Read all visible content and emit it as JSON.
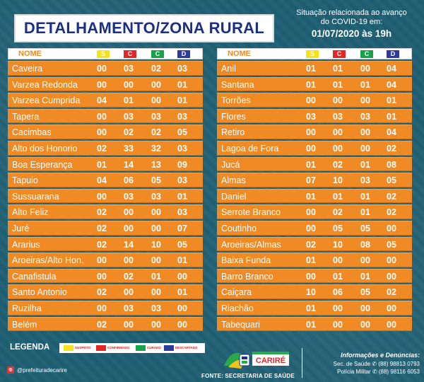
{
  "title": "DETALHAMENTO/ZONA RURAL",
  "status": {
    "line1": "Situação relacionada ao avanço",
    "line2": "do COVID-19 em:",
    "datetime": "01/07/2020 às 19h"
  },
  "header": {
    "name_label": "NOME",
    "s": "S",
    "c": "C",
    "cu": "C",
    "d": "D"
  },
  "colors": {
    "background": "#1f5f73",
    "row": "#f08a24",
    "title_text": "#1b2f87",
    "suspeito": "#f4e21a",
    "confirmado": "#e32726",
    "curado": "#17a34a",
    "descartado": "#2f3a9f"
  },
  "left_rows": [
    {
      "name": "Caveira",
      "s": "00",
      "c": "03",
      "cu": "02",
      "d": "03"
    },
    {
      "name": "Varzea Redonda",
      "s": "00",
      "c": "00",
      "cu": "00",
      "d": "01"
    },
    {
      "name": "Varzea Cumprida",
      "s": "04",
      "c": "01",
      "cu": "00",
      "d": "01"
    },
    {
      "name": "Tapera",
      "s": "00",
      "c": "03",
      "cu": "03",
      "d": "03"
    },
    {
      "name": "Cacimbas",
      "s": "00",
      "c": "02",
      "cu": "02",
      "d": "05"
    },
    {
      "name": "Alto dos Honorio",
      "s": "02",
      "c": "33",
      "cu": "32",
      "d": "03"
    },
    {
      "name": "Boa Esperança",
      "s": "01",
      "c": "14",
      "cu": "13",
      "d": "09"
    },
    {
      "name": "Tapuio",
      "s": "04",
      "c": "06",
      "cu": "05",
      "d": "03"
    },
    {
      "name": "Sussuarana",
      "s": "00",
      "c": "03",
      "cu": "03",
      "d": "01"
    },
    {
      "name": "Alto Feliz",
      "s": "02",
      "c": "00",
      "cu": "00",
      "d": "03"
    },
    {
      "name": "Juré",
      "s": "02",
      "c": "00",
      "cu": "00",
      "d": "07"
    },
    {
      "name": "Ararius",
      "s": "02",
      "c": "14",
      "cu": "10",
      "d": "05"
    },
    {
      "name": "Aroeiras/Alto Hon.",
      "s": "00",
      "c": "00",
      "cu": "00",
      "d": "01"
    },
    {
      "name": "Canafistula",
      "s": "00",
      "c": "02",
      "cu": "01",
      "d": "00"
    },
    {
      "name": "Santo Antonio",
      "s": "02",
      "c": "00",
      "cu": "00",
      "d": "01"
    },
    {
      "name": "Ruzilha",
      "s": "00",
      "c": "03",
      "cu": "03",
      "d": "00"
    },
    {
      "name": "Belém",
      "s": "02",
      "c": "00",
      "cu": "00",
      "d": "00"
    }
  ],
  "right_rows": [
    {
      "name": "Anil",
      "s": "01",
      "c": "01",
      "cu": "00",
      "d": "04"
    },
    {
      "name": "Santana",
      "s": "01",
      "c": "01",
      "cu": "01",
      "d": "04"
    },
    {
      "name": "Torrões",
      "s": "00",
      "c": "00",
      "cu": "00",
      "d": "01"
    },
    {
      "name": "Flores",
      "s": "03",
      "c": "03",
      "cu": "03",
      "d": "01"
    },
    {
      "name": "Retiro",
      "s": "00",
      "c": "00",
      "cu": "00",
      "d": "04"
    },
    {
      "name": "Lagoa de Fora",
      "s": "00",
      "c": "00",
      "cu": "00",
      "d": "02"
    },
    {
      "name": "Jucá",
      "s": "01",
      "c": "02",
      "cu": "01",
      "d": "08"
    },
    {
      "name": "Almas",
      "s": "07",
      "c": "10",
      "cu": "03",
      "d": "05"
    },
    {
      "name": "Daniel",
      "s": "01",
      "c": "01",
      "cu": "01",
      "d": "02"
    },
    {
      "name": "Serrote Branco",
      "s": "00",
      "c": "02",
      "cu": "01",
      "d": "02"
    },
    {
      "name": "Coutinho",
      "s": "00",
      "c": "05",
      "cu": "05",
      "d": "00"
    },
    {
      "name": "Aroeiras/Almas",
      "s": "02",
      "c": "10",
      "cu": "08",
      "d": "05"
    },
    {
      "name": "Baixa Funda",
      "s": "01",
      "c": "00",
      "cu": "00",
      "d": "00"
    },
    {
      "name": "Barro Branco",
      "s": "00",
      "c": "01",
      "cu": "01",
      "d": "00"
    },
    {
      "name": "Caiçara",
      "s": "10",
      "c": "06",
      "cu": "05",
      "d": "02"
    },
    {
      "name": "Riachão",
      "s": "01",
      "c": "00",
      "cu": "00",
      "d": "00"
    },
    {
      "name": "Tabequari",
      "s": "01",
      "c": "00",
      "cu": "00",
      "d": "00"
    }
  ],
  "legend": {
    "label": "LEGENDA",
    "items": [
      "SUSPEITO",
      "CONFIRMADO",
      "CURADO",
      "DESCARTADO"
    ]
  },
  "footer": {
    "social_handle": "@prefeituradecarire",
    "logo_text": "CARIRÉ",
    "source": "FONTE: SECRETARIA DE SAÚDE",
    "info_title": "Informações e Denúncias:",
    "info_line1": "Sec. de Saúde ✆ (88) 98813 0793",
    "info_line2": "Polícia Militar ✆ (88) 98116 6053"
  }
}
